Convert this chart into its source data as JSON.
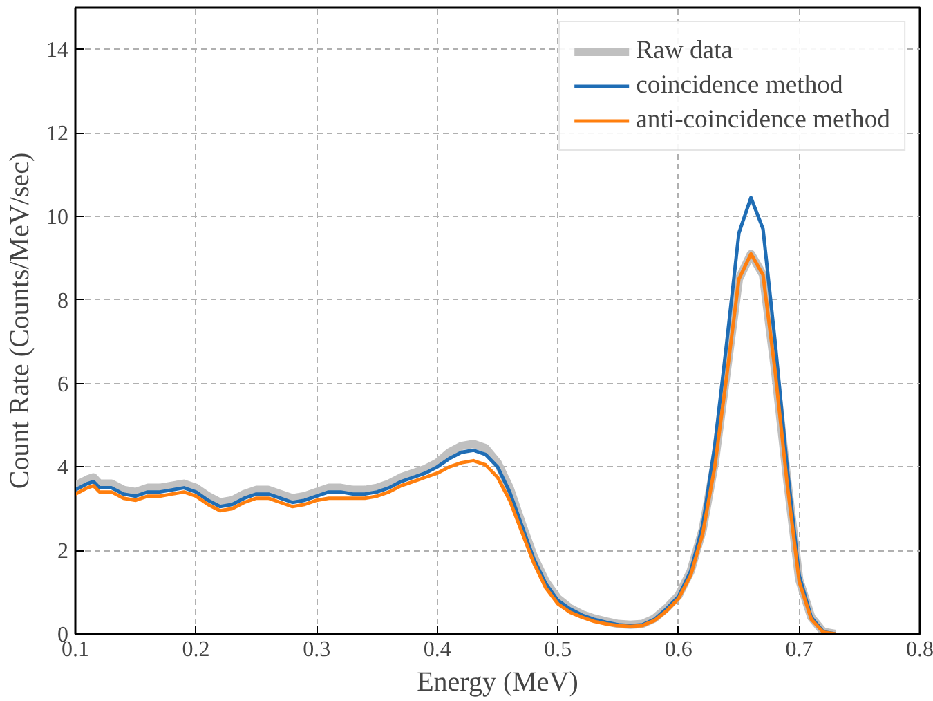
{
  "chart_data": {
    "type": "line",
    "xlabel": "Energy (MeV)",
    "ylabel": "Count Rate (Counts/MeV/sec)",
    "x": [
      0.1,
      0.11,
      0.115,
      0.12,
      0.13,
      0.14,
      0.15,
      0.16,
      0.17,
      0.18,
      0.19,
      0.2,
      0.21,
      0.22,
      0.23,
      0.24,
      0.25,
      0.26,
      0.27,
      0.28,
      0.29,
      0.3,
      0.31,
      0.32,
      0.33,
      0.34,
      0.35,
      0.36,
      0.37,
      0.38,
      0.39,
      0.4,
      0.41,
      0.42,
      0.43,
      0.44,
      0.45,
      0.46,
      0.47,
      0.48,
      0.49,
      0.5,
      0.51,
      0.52,
      0.53,
      0.54,
      0.55,
      0.56,
      0.57,
      0.58,
      0.59,
      0.6,
      0.61,
      0.62,
      0.63,
      0.64,
      0.65,
      0.66,
      0.67,
      0.68,
      0.69,
      0.7,
      0.71,
      0.72,
      0.73
    ],
    "xlim": [
      0.1,
      0.8
    ],
    "xticks": [
      0.1,
      0.2,
      0.3,
      0.4,
      0.5,
      0.6,
      0.7,
      0.8
    ],
    "ylim": [
      0,
      15
    ],
    "yticks": [
      0,
      2,
      4,
      6,
      8,
      10,
      12,
      14
    ],
    "grid": true,
    "legend": "top right",
    "line_style": "solid",
    "marker": "none",
    "series": [
      {
        "name": "Raw data",
        "color": "#c0c0c0",
        "values": [
          3.55,
          3.7,
          3.75,
          3.6,
          3.6,
          3.45,
          3.4,
          3.5,
          3.5,
          3.55,
          3.6,
          3.5,
          3.3,
          3.15,
          3.2,
          3.35,
          3.45,
          3.45,
          3.35,
          3.25,
          3.3,
          3.4,
          3.5,
          3.5,
          3.45,
          3.45,
          3.5,
          3.6,
          3.75,
          3.85,
          3.95,
          4.1,
          4.35,
          4.5,
          4.55,
          4.45,
          4.1,
          3.5,
          2.65,
          1.85,
          1.25,
          0.85,
          0.62,
          0.47,
          0.37,
          0.3,
          0.24,
          0.22,
          0.24,
          0.37,
          0.62,
          0.92,
          1.5,
          2.5,
          4.1,
          6.3,
          8.5,
          9.1,
          8.6,
          6.3,
          3.7,
          1.3,
          0.4,
          0.05,
          0.0
        ]
      },
      {
        "name": "coincidence method",
        "color": "#1f6db5",
        "values": [
          3.45,
          3.6,
          3.65,
          3.5,
          3.5,
          3.35,
          3.3,
          3.4,
          3.4,
          3.45,
          3.5,
          3.4,
          3.2,
          3.05,
          3.1,
          3.25,
          3.35,
          3.35,
          3.25,
          3.15,
          3.2,
          3.3,
          3.4,
          3.4,
          3.35,
          3.35,
          3.4,
          3.5,
          3.65,
          3.75,
          3.85,
          4.0,
          4.2,
          4.35,
          4.4,
          4.3,
          4.0,
          3.4,
          2.6,
          1.8,
          1.2,
          0.8,
          0.6,
          0.45,
          0.35,
          0.28,
          0.22,
          0.2,
          0.22,
          0.35,
          0.6,
          0.9,
          1.5,
          2.6,
          4.5,
          7.0,
          9.6,
          10.45,
          9.7,
          7.0,
          4.0,
          1.4,
          0.4,
          0.05,
          0.0
        ]
      },
      {
        "name": "anti-coincidence method",
        "color": "#ff7f0e",
        "values": [
          3.35,
          3.5,
          3.55,
          3.4,
          3.4,
          3.25,
          3.2,
          3.3,
          3.3,
          3.35,
          3.4,
          3.3,
          3.1,
          2.95,
          3.0,
          3.15,
          3.25,
          3.25,
          3.15,
          3.05,
          3.1,
          3.2,
          3.25,
          3.25,
          3.25,
          3.25,
          3.3,
          3.4,
          3.55,
          3.65,
          3.75,
          3.85,
          4.0,
          4.1,
          4.15,
          4.05,
          3.75,
          3.2,
          2.45,
          1.7,
          1.1,
          0.72,
          0.52,
          0.4,
          0.3,
          0.24,
          0.2,
          0.18,
          0.2,
          0.32,
          0.55,
          0.85,
          1.4,
          2.4,
          4.0,
          6.2,
          8.5,
          9.1,
          8.6,
          6.3,
          3.6,
          1.25,
          0.35,
          0.04,
          0.0
        ]
      }
    ]
  }
}
